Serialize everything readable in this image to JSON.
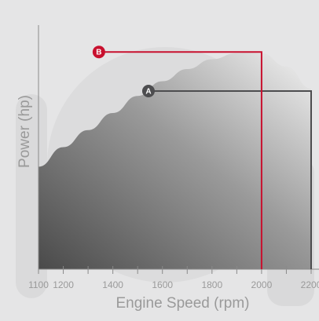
{
  "chart_data": {
    "type": "area",
    "title": "",
    "xlabel": "Engine Speed (rpm)",
    "ylabel": "Power (hp)",
    "xlim": [
      1100,
      2200
    ],
    "ylim": [
      0,
      100
    ],
    "x_ticks": [
      1100,
      1200,
      1300,
      1400,
      1500,
      1600,
      1700,
      1800,
      1900,
      2000,
      2100,
      2200
    ],
    "x_tick_labels": [
      "1100",
      "1200",
      "1400",
      "1600",
      "1800",
      "2000",
      "2200"
    ],
    "grid": false,
    "series": [
      {
        "x": [
          1100,
          1200,
          1300,
          1400,
          1500,
          1600,
          1700,
          1800,
          1900,
          1950,
          2000,
          2100,
          2200
        ],
        "values": [
          42,
          50,
          57,
          64,
          71,
          77,
          82,
          86,
          88.5,
          89,
          88.5,
          83,
          74
        ]
      }
    ],
    "annotations": [
      {
        "label": "A",
        "x": 2200,
        "y": 73,
        "color": "#4d4d4f"
      },
      {
        "label": "B",
        "x": 2000,
        "y": 89,
        "color": "#c8102e"
      }
    ]
  },
  "colors": {
    "background": "#e5e5e6",
    "axis": "#8a8a8a",
    "area_dark": "#4a4a4a",
    "area_light": "#f2f2f2",
    "marker_a": "#4d4d4f",
    "marker_b": "#c8102e"
  }
}
